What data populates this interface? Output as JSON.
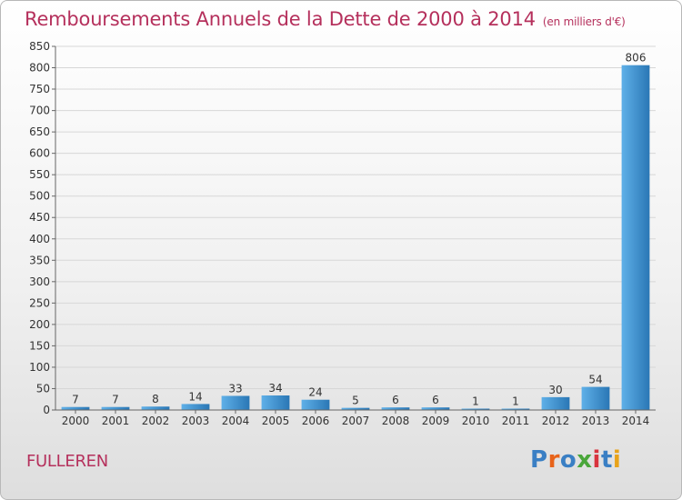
{
  "header": {
    "title": "Remboursements Annuels de la Dette de 2000 à 2014",
    "unit": "(en milliers d'€)"
  },
  "footer": {
    "commune": "FULLEREN",
    "logo_text": "Proxiti",
    "logo_colors": [
      "#3a7fc4",
      "#e8631a",
      "#3a7fc4",
      "#4aa63a",
      "#d8343e",
      "#3a7fc4",
      "#e8a31a"
    ]
  },
  "colors": {
    "title": "#b5305c",
    "bar_light": "#5fb0e8",
    "bar_dark": "#2a77b5",
    "axis": "#666666",
    "grid": "#d7d7d7"
  },
  "chart_data": {
    "type": "bar",
    "title": "Remboursements Annuels de la Dette de 2000 à 2014",
    "subtitle": "(en milliers d'€)",
    "xlabel": "",
    "ylabel": "",
    "categories": [
      "2000",
      "2001",
      "2002",
      "2003",
      "2004",
      "2005",
      "2006",
      "2007",
      "2008",
      "2009",
      "2010",
      "2011",
      "2012",
      "2013",
      "2014"
    ],
    "values": [
      7,
      7,
      8,
      14,
      33,
      34,
      24,
      5,
      6,
      6,
      1,
      1,
      30,
      54,
      806
    ],
    "ylim": [
      0,
      850
    ],
    "yticks": [
      0,
      50,
      100,
      150,
      200,
      250,
      300,
      350,
      400,
      450,
      500,
      550,
      600,
      650,
      700,
      750,
      800,
      850
    ],
    "grid": true,
    "data_labels": true
  }
}
